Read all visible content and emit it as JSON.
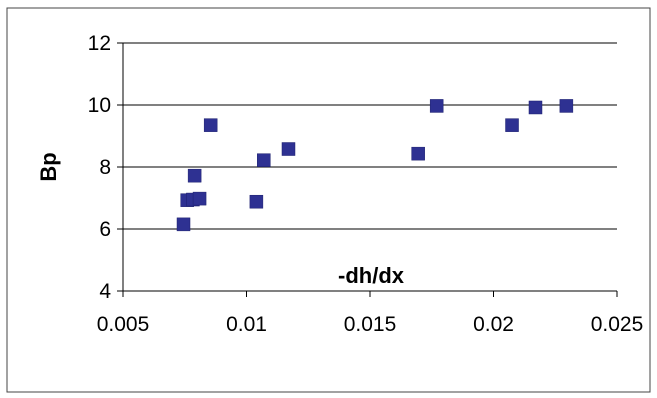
{
  "chart_data": {
    "type": "scatter",
    "title": "",
    "xlabel": "-dh/dx",
    "ylabel": "Bp",
    "xlim": [
      0.005,
      0.025
    ],
    "ylim": [
      4,
      12
    ],
    "x_ticks": [
      0.005,
      0.01,
      0.015,
      0.02,
      0.025
    ],
    "x_tick_labels": [
      "0.005",
      "0.01",
      "0.015",
      "0.02",
      "0.025"
    ],
    "y_ticks": [
      4,
      6,
      8,
      10,
      12
    ],
    "y_tick_labels": [
      "4",
      "6",
      "8",
      "10",
      "12"
    ],
    "grid": "horizontal",
    "legend": "none",
    "marker_color": "#2e3192",
    "points": [
      {
        "x": 0.00745,
        "y": 6.15
      },
      {
        "x": 0.0076,
        "y": 6.93
      },
      {
        "x": 0.00783,
        "y": 6.95
      },
      {
        "x": 0.0079,
        "y": 7.72
      },
      {
        "x": 0.0081,
        "y": 6.98
      },
      {
        "x": 0.00855,
        "y": 9.35
      },
      {
        "x": 0.0104,
        "y": 6.88
      },
      {
        "x": 0.0107,
        "y": 8.22
      },
      {
        "x": 0.0117,
        "y": 8.58
      },
      {
        "x": 0.01695,
        "y": 8.43
      },
      {
        "x": 0.0177,
        "y": 9.97
      },
      {
        "x": 0.02075,
        "y": 9.35
      },
      {
        "x": 0.0217,
        "y": 9.92
      },
      {
        "x": 0.02295,
        "y": 9.97
      }
    ]
  }
}
